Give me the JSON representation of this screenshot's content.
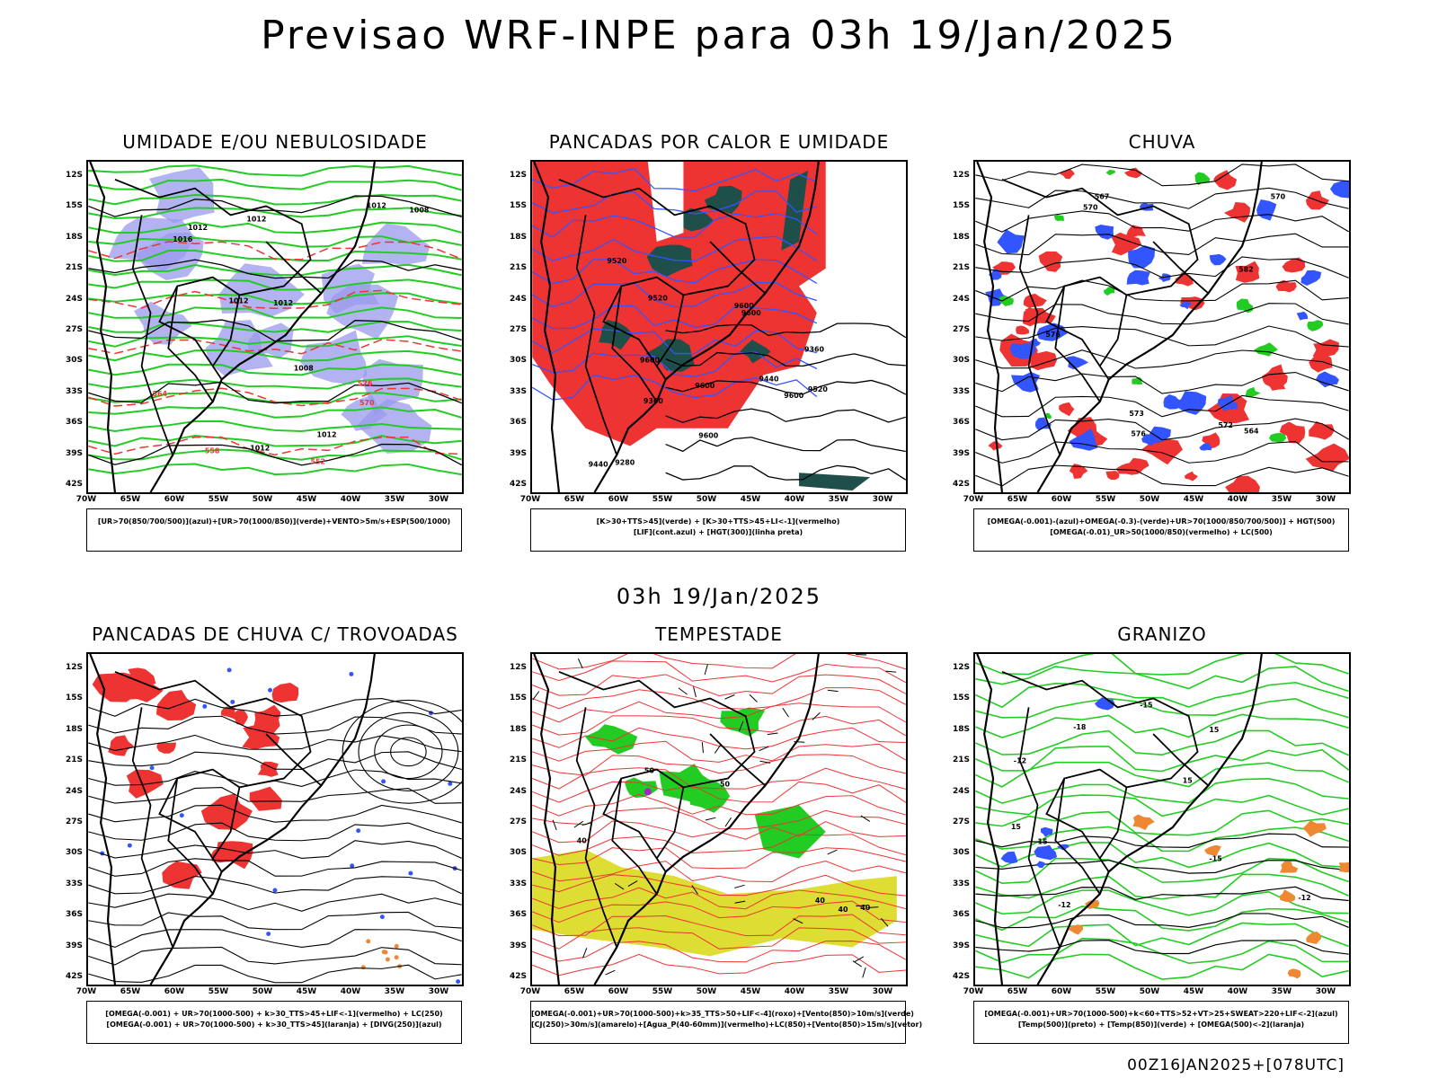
{
  "header": {
    "title": "Previsao WRF-INPE  para 03h 19/Jan/2025"
  },
  "mid_time": "03h 19/Jan/2025",
  "footer": "00Z16JAN2025+[078UTC]",
  "colors": {
    "blue": "#3355ff",
    "green": "#22cc22",
    "red": "#ee3333",
    "yellow": "#dddd33",
    "lavender": "#9999ee",
    "darkteal": "#1f4f4a",
    "orange": "#ee8833",
    "purple": "#aa22cc"
  },
  "axes": {
    "lat_labels": [
      "12S",
      "15S",
      "18S",
      "21S",
      "24S",
      "27S",
      "30S",
      "33S",
      "36S",
      "39S",
      "42S"
    ],
    "lon_labels": [
      "70W",
      "65W",
      "60W",
      "55W",
      "50W",
      "45W",
      "40W",
      "35W",
      "30W"
    ]
  },
  "panels": [
    {
      "title": "UMIDADE E/OU NEBULOSIDADE",
      "legend": [
        "[UR>70(850/700/500)](azul)+[UR>70(1000/850)](verde)+VENTO>5m/s+ESP(500/1000)"
      ],
      "contour_labels": [
        "1012",
        "1012",
        "1012",
        "1008",
        "1012",
        "1012",
        "1008",
        "1012",
        "1016",
        "1012",
        "570",
        "576",
        "564",
        "558",
        "552"
      ]
    },
    {
      "title": "PANCADAS POR CALOR E UMIDADE",
      "legend": [
        "[K>30+TTS>45](verde) + [K>30+TTS>45+LI<-1](vermelho)",
        "[LIF](cont.azul) + [HGT(300)](linha preta)"
      ],
      "contour_labels": [
        "9600",
        "9600",
        "9600",
        "9600",
        "9520",
        "9600",
        "9600",
        "9520",
        "9440",
        "9520",
        "9440",
        "9360",
        "9360",
        "9280"
      ]
    },
    {
      "title": "CHUVA",
      "legend": [
        "[OMEGA(-0.001)-(azul)+OMEGA(-0.3)-(verde)+UR>70(1000/850/700/500)] + HGT(500)",
        "[OMEGA(-0.01)_UR>50(1000/850)(vermelho) + LC(500)"
      ],
      "contour_labels": [
        "582",
        "576",
        "576",
        "573",
        "572",
        "570",
        "570",
        "567",
        "564"
      ]
    },
    {
      "title": "PANCADAS DE CHUVA C/ TROVOADAS",
      "legend": [
        "[OMEGA(-0.001) + UR>70(1000-500) + k>30_TTS>45+LIF<-1](vermelho) + LC(250)",
        "[OMEGA(-0.001) + UR>70(1000-500) + k>30_TTS>45](laranja) + [DIVG(250)](azul)"
      ],
      "contour_labels": []
    },
    {
      "title": "TEMPESTADE",
      "legend": [
        "[OMEGA(-0.001)+UR>70(1000-500)+k>35_TTS>50+LIF<-4](roxo)+[Vento(850)>10m/s](verde)",
        "[CJ(250)>30m/s](amarelo)+[Agua_P(40-60mm)](vermelho)+LC(850)+[Vento(850)>15m/s](vetor)"
      ],
      "contour_labels": [
        "40",
        "50",
        "40",
        "40",
        "50",
        "40"
      ]
    },
    {
      "title": "GRANIZO",
      "legend": [
        "[OMEGA(-0.001)+UR>70(1000-500)+k<60+TTS>52+VT>25+SWEAT>220+LIF<-2](azul)",
        "[Temp(500)](preto) + [Temp(850)](verde) + [OMEGA(500)<-2](laranja)"
      ],
      "contour_labels": [
        "-12",
        "-12",
        "-15",
        "-12",
        "-15",
        "-18",
        "15",
        "15",
        "15",
        "15"
      ]
    }
  ]
}
